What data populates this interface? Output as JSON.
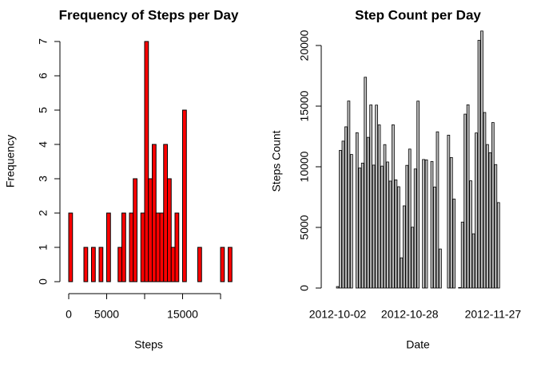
{
  "chart_data": [
    {
      "type": "histogram",
      "title": "Frequency of Steps per Day",
      "x_label": "Steps",
      "y_label": "Frequency",
      "bins": [
        0,
        500,
        1000,
        1500,
        2000,
        2500,
        3000,
        3500,
        4000,
        4500,
        5000,
        5500,
        6000,
        6500,
        7000,
        7500,
        8000,
        8500,
        9000,
        9500,
        10000,
        10500,
        11000,
        11500,
        12000,
        12500,
        13000,
        13500,
        14000,
        14500,
        15000,
        15500,
        16000,
        16500,
        17000,
        17500,
        18000,
        18500,
        19000,
        19500,
        20000,
        20500,
        21000,
        21500
      ],
      "values": [
        2,
        0,
        0,
        0,
        1,
        0,
        1,
        0,
        1,
        0,
        2,
        0,
        0,
        1,
        2,
        0,
        2,
        3,
        0,
        2,
        7,
        3,
        4,
        2,
        2,
        4,
        3,
        1,
        2,
        0,
        5,
        0,
        0,
        0,
        1,
        0,
        0,
        0,
        0,
        0,
        1,
        0,
        1
      ],
      "color": "#ff0000",
      "xlim": [
        0,
        21500
      ],
      "xticks": [
        0,
        5000,
        {
          "value": 10000,
          "label": null
        },
        15000,
        {
          "value": 20000,
          "label": null
        }
      ],
      "ylim": [
        0,
        7
      ],
      "yticks": [
        0,
        1,
        2,
        3,
        4,
        5,
        6,
        7
      ]
    },
    {
      "type": "bar",
      "title": "Step Count per Day",
      "x_label": "Date",
      "y_label": "Steps Count",
      "categories": [
        null,
        "2012-10-02",
        null,
        null,
        null,
        null,
        null,
        null,
        null,
        null,
        null,
        null,
        null,
        null,
        null,
        null,
        null,
        null,
        null,
        null,
        null,
        null,
        null,
        null,
        null,
        null,
        null,
        "2012-10-28",
        null,
        null,
        null,
        null,
        null,
        null,
        null,
        null,
        null,
        null,
        null,
        null,
        null,
        null,
        null,
        null,
        null,
        null,
        null,
        null,
        null,
        null,
        null,
        null,
        null,
        null,
        null,
        null,
        null,
        "2012-11-27",
        null,
        null,
        null
      ],
      "values": [
        0,
        126,
        11352,
        12116,
        13294,
        15420,
        11015,
        0,
        12811,
        9900,
        10304,
        17382,
        12426,
        15098,
        10139,
        15084,
        13452,
        10056,
        11829,
        10395,
        8821,
        13460,
        8918,
        8355,
        2492,
        6778,
        10119,
        11458,
        5018,
        9819,
        15414,
        0,
        10600,
        10571,
        0,
        10439,
        8334,
        12883,
        3219,
        0,
        0,
        12608,
        10765,
        7336,
        0,
        41,
        5441,
        14339,
        15110,
        8841,
        4472,
        12787,
        20427,
        21194,
        14478,
        11834,
        11162,
        13646,
        10183,
        7047,
        0
      ],
      "color": "#bebebe",
      "ylim": [
        0,
        22000
      ],
      "yticks": [
        0,
        5000,
        10000,
        15000,
        20000
      ]
    }
  ]
}
